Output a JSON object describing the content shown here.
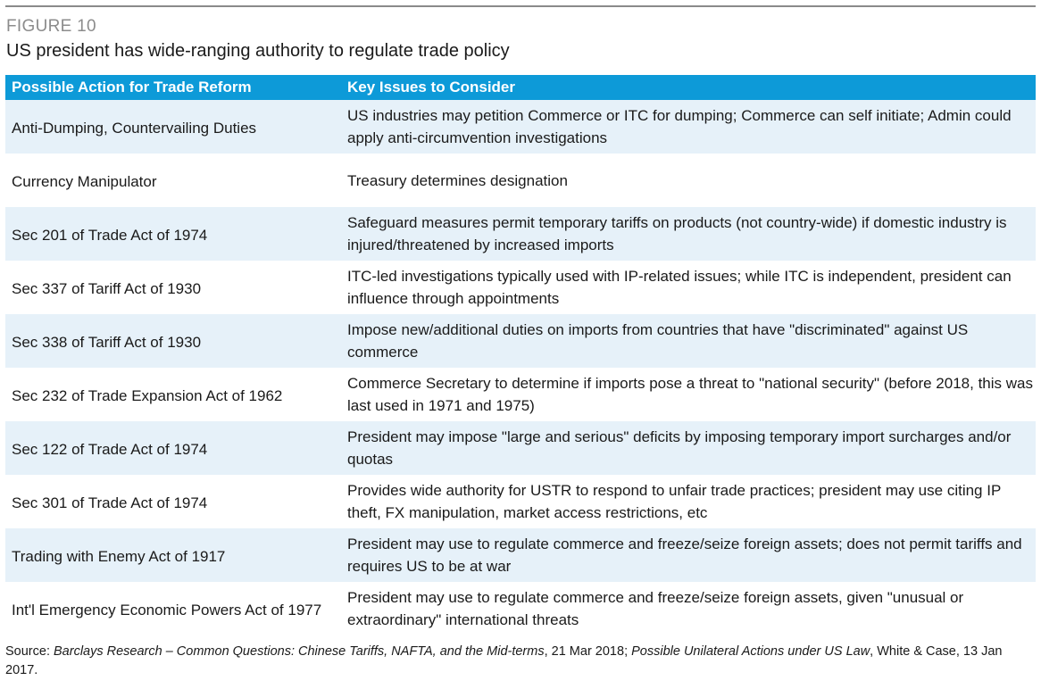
{
  "figure": {
    "label": "FIGURE 10",
    "title": "US president has wide-ranging authority to regulate trade policy"
  },
  "table": {
    "headers": [
      "Possible Action for Trade Reform",
      "Key Issues to Consider"
    ],
    "rows": [
      {
        "action": "Anti-Dumping, Countervailing Duties",
        "issues": "US industries may petition Commerce or ITC for dumping; Commerce can self initiate; Admin could apply anti-circumvention investigations"
      },
      {
        "action": "Currency Manipulator",
        "issues": "Treasury determines designation"
      },
      {
        "action": "Sec 201 of Trade Act of 1974",
        "issues": "Safeguard measures permit temporary tariffs on products (not country-wide) if domestic industry is injured/threatened by increased imports"
      },
      {
        "action": "Sec 337 of Tariff Act of 1930",
        "issues": "ITC-led investigations typically used with IP-related issues; while ITC is independent, president can influence through appointments"
      },
      {
        "action": "Sec 338 of Tariff Act of 1930",
        "issues": "Impose new/additional duties on imports from countries that have \"discriminated\" against US commerce"
      },
      {
        "action": "Sec 232 of Trade Expansion Act of 1962",
        "issues": "Commerce Secretary to determine if imports pose a threat to \"national security\" (before 2018, this was last used in 1971 and 1975)"
      },
      {
        "action": "Sec 122 of Trade Act of 1974",
        "issues": "President may impose \"large and serious\" deficits by imposing temporary import surcharges and/or quotas"
      },
      {
        "action": "Sec 301 of Trade Act of 1974",
        "issues": "Provides wide authority for USTR to respond to unfair trade practices; president may use citing IP theft, FX manipulation, market access restrictions, etc"
      },
      {
        "action": "Trading with Enemy Act of 1917",
        "issues": "President may use to regulate commerce and freeze/seize foreign assets; does not permit tariffs and requires US to be at war"
      },
      {
        "action": "Int'l Emergency Economic Powers Act of 1977",
        "issues": "President may use to regulate commerce and freeze/seize foreign assets, given \"unusual or extraordinary\" international threats"
      }
    ]
  },
  "source": {
    "prefix": "Source: ",
    "ref1": "Barclays Research – Common Questions: Chinese Tariffs, NAFTA, and the Mid-terms",
    "mid": ", 21 Mar 2018; ",
    "ref2": "Possible Unilateral Actions under US Law",
    "suffix": ", White & Case, 13 Jan 2017."
  },
  "colors": {
    "header_bg": "#0d9ad8",
    "stripe_bg": "#e6f1f9",
    "label_gray": "#8c8c8c"
  }
}
